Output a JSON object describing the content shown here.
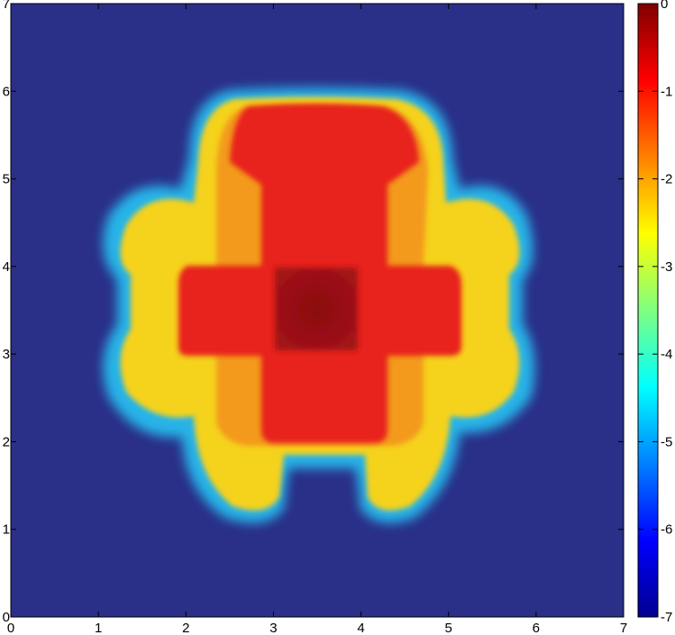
{
  "chart_data": {
    "type": "heatmap",
    "title": "",
    "xlabel": "",
    "ylabel": "",
    "xlim": [
      0,
      7
    ],
    "ylim": [
      0,
      7
    ],
    "x_ticks": [
      "0",
      "1",
      "2",
      "3",
      "4",
      "5",
      "6",
      "7"
    ],
    "y_ticks": [
      "0",
      "1",
      "2",
      "3",
      "4",
      "5",
      "6",
      "7"
    ],
    "colorbar": {
      "range": [
        -7,
        0
      ],
      "ticks": [
        "0",
        "-1",
        "-2",
        "-3",
        "-4",
        "-5",
        "-6",
        "-7"
      ],
      "colormap": "jet"
    },
    "description_regions": [
      {
        "region": "background",
        "value": -7
      },
      {
        "region": "central square x 3.0-4.0, y 3.0-4.0",
        "value": -0.2
      },
      {
        "region": "cross arms x 2.0-5.0 / y 2.0-5.0",
        "value": -0.8
      },
      {
        "region": "top cap x 2.5-4.9, y 5.0-6.0",
        "value": -1.1
      },
      {
        "region": "outer lobes",
        "value": -2.6
      },
      {
        "region": "edge ring",
        "value": -5.3
      }
    ]
  },
  "colors": {
    "background": "#2a2f88",
    "axis": "#000000"
  }
}
